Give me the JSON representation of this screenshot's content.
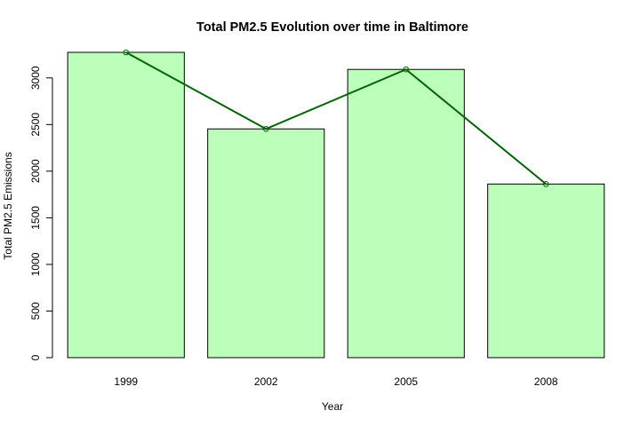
{
  "chart_data": {
    "type": "bar",
    "title": "Total PM2.5 Evolution over time in Baltimore",
    "xlabel": "Year",
    "ylabel": "Total PM2.5 Emissions",
    "categories": [
      "1999",
      "2002",
      "2005",
      "2008"
    ],
    "values": [
      3274,
      2453,
      3091,
      1862
    ],
    "ylim": [
      0,
      3274
    ],
    "yticks": [
      0,
      500,
      1000,
      1500,
      2000,
      2500,
      3000
    ],
    "overlay": {
      "type": "line",
      "values": [
        3274,
        2453,
        3091,
        1862
      ],
      "markers": "open-circle"
    },
    "grid": false,
    "legend": "none",
    "colors": {
      "bar_fill": "#bbffbb",
      "bar_stroke": "#000000",
      "line": "#006400"
    }
  }
}
